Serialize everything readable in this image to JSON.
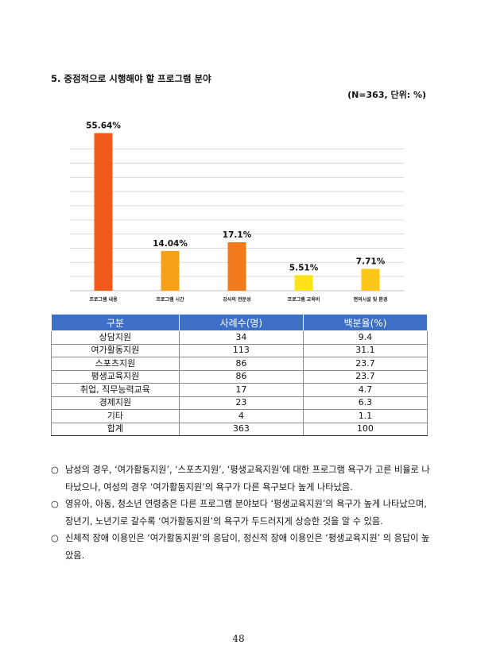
{
  "section": {
    "heading": "5. 중점적으로 시행해야 할 프로그램 분야",
    "unit_note": "(N=363,  단위: %)"
  },
  "chart_data": {
    "type": "bar",
    "categories": [
      "프로그램 내용",
      "프로그램 시간",
      "강사의 전문성",
      "프로그램 교육비",
      "편의시설 및 환경"
    ],
    "values": [
      55.64,
      14.04,
      17.1,
      5.51,
      7.71
    ],
    "value_labels": [
      "55.64%",
      "14.04%",
      "17.1%",
      "5.51%",
      "7.71%"
    ],
    "colors": [
      "#f05a1c",
      "#f7a11a",
      "#f07a1c",
      "#ffe21a",
      "#ffc61a"
    ],
    "ylim": [
      0,
      60
    ],
    "grid": true,
    "title": "",
    "xlabel": "",
    "ylabel": ""
  },
  "table": {
    "headers": [
      "구분",
      "사례수(명)",
      "백분율(%)"
    ],
    "rows": [
      [
        "상담지원",
        "34",
        "9.4"
      ],
      [
        "여가활동지원",
        "113",
        "31.1"
      ],
      [
        "스포츠지원",
        "86",
        "23.7"
      ],
      [
        "평생교육지원",
        "86",
        "23.7"
      ],
      [
        "취업, 직무능력교육",
        "17",
        "4.7"
      ],
      [
        "경제지원",
        "23",
        "6.3"
      ],
      [
        "기타",
        "4",
        "1.1"
      ],
      [
        "합계",
        "363",
        "100"
      ]
    ]
  },
  "notes": {
    "bullet": "○",
    "items": [
      "남성의 경우, ‘여가활동지원’, ‘스포츠지원’, ‘평생교육지원’에 대한 프로그램 욕구가 고른 비율로 나타났으나, 여성의 경우 ‘여가활동지원’의 욕구가 다른 욕구보다 높게 나타났음.",
      "영유아, 아동, 청소년 연령층은 다른 프로그램 분야보다 ‘평생교육지원’의 욕구가 높게 나타났으며, 장년기, 노년기로 갈수록 ‘여가활동지원’의 욕구가 두드러지게 상승한 것을 알 수 있음.",
      "신체적 장애 이용인은 ‘여가활동지원’의 응답이, 정신적 장애 이용인은 ‘평생교육지원’ 의 응답이 높았음."
    ]
  },
  "page_number": "48"
}
